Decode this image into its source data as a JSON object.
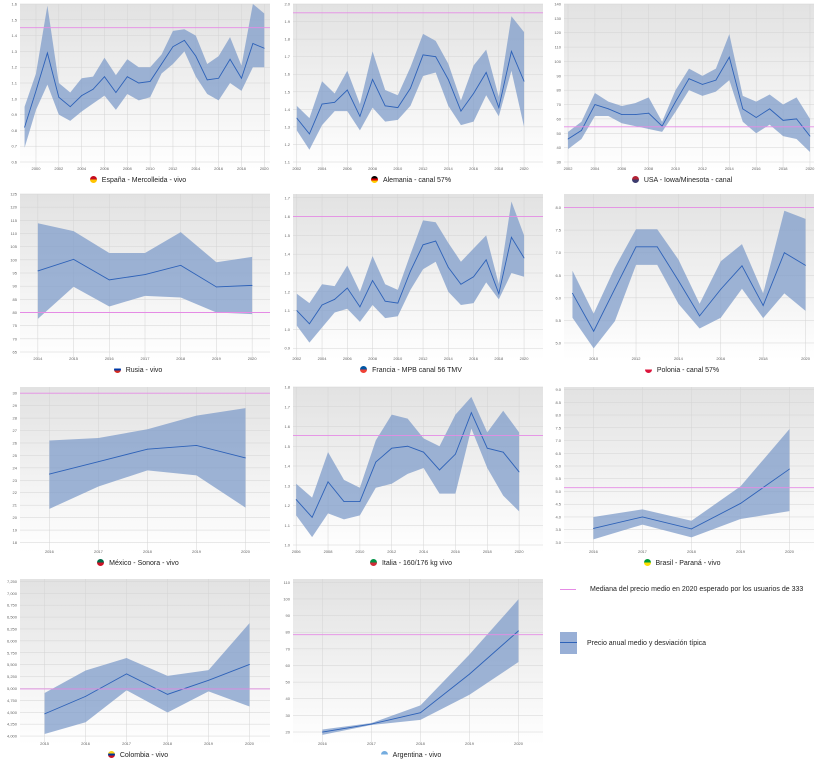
{
  "colors": {
    "band": "#7f9cc9",
    "mean_line": "#2e62b8",
    "median_line": "#e58be5",
    "plot_bg_top": "#e2e2e2",
    "plot_bg_bottom": "#ffffff"
  },
  "legend": {
    "median_label": "Mediana del precio medio en 2020 esperado por los usuarios de 333",
    "band_label": "Precio anual medio y desviación típica"
  },
  "chart_data": [
    {
      "type": "area",
      "title": "España - Mercolleida - vivo",
      "flag": "spain-flag-icon",
      "flag_colors": [
        "#c60b1e",
        "#ffc400"
      ],
      "x": [
        1999,
        2000,
        2001,
        2002,
        2003,
        2004,
        2005,
        2006,
        2007,
        2008,
        2009,
        2010,
        2011,
        2012,
        2013,
        2014,
        2015,
        2016,
        2017,
        2018,
        2019,
        2020
      ],
      "mean": [
        0.82,
        1.05,
        1.29,
        1.01,
        0.95,
        1.02,
        1.06,
        1.14,
        1.04,
        1.14,
        1.1,
        1.11,
        1.22,
        1.33,
        1.37,
        1.27,
        1.12,
        1.13,
        1.25,
        1.13,
        1.35,
        1.32
      ],
      "upper": [
        0.95,
        1.16,
        1.59,
        1.1,
        1.04,
        1.13,
        1.14,
        1.26,
        1.15,
        1.25,
        1.2,
        1.2,
        1.28,
        1.43,
        1.44,
        1.4,
        1.22,
        1.27,
        1.39,
        1.21,
        1.6,
        1.54
      ],
      "lower": [
        0.69,
        0.93,
        1.09,
        0.9,
        0.86,
        0.92,
        0.97,
        1.02,
        0.93,
        1.03,
        0.99,
        1.01,
        1.16,
        1.22,
        1.3,
        1.14,
        1.03,
        0.99,
        1.1,
        1.05,
        1.2,
        1.2
      ],
      "median_2020": 1.45,
      "ylim": [
        0.6,
        1.6
      ],
      "yticks": [
        "0.6",
        "0.7",
        "0.8",
        "0.9",
        "1.0",
        "1.1",
        "1.2",
        "1.3",
        "1.4",
        "1.5",
        "1.6"
      ],
      "xlim": [
        1998.6,
        2020.5
      ],
      "xticks": [
        "2000",
        "2002",
        "2004",
        "2006",
        "2008",
        "2010",
        "2012",
        "2014",
        "2016",
        "2018",
        "2020"
      ],
      "grid": true
    },
    {
      "type": "area",
      "title": "Alemania - canal 57%",
      "flag": "germany-flag-icon",
      "flag_colors": [
        "#000000",
        "#dd0000",
        "#ffce00"
      ],
      "x": [
        2002,
        2003,
        2004,
        2005,
        2006,
        2007,
        2008,
        2009,
        2010,
        2011,
        2012,
        2013,
        2014,
        2015,
        2016,
        2017,
        2018,
        2019,
        2020
      ],
      "mean": [
        1.35,
        1.26,
        1.43,
        1.44,
        1.51,
        1.36,
        1.57,
        1.42,
        1.41,
        1.52,
        1.71,
        1.7,
        1.57,
        1.39,
        1.49,
        1.61,
        1.41,
        1.73,
        1.56
      ],
      "upper": [
        1.42,
        1.35,
        1.56,
        1.49,
        1.62,
        1.43,
        1.73,
        1.51,
        1.48,
        1.64,
        1.83,
        1.79,
        1.66,
        1.45,
        1.65,
        1.74,
        1.47,
        1.93,
        1.84
      ],
      "lower": [
        1.28,
        1.17,
        1.31,
        1.39,
        1.39,
        1.28,
        1.41,
        1.33,
        1.34,
        1.42,
        1.59,
        1.61,
        1.42,
        1.31,
        1.33,
        1.48,
        1.36,
        1.62,
        1.3
      ],
      "median_2020": 1.95,
      "ylim": [
        1.1,
        2.0
      ],
      "yticks": [
        "1.1",
        "1.2",
        "1.3",
        "1.4",
        "1.5",
        "1.6",
        "1.7",
        "1.8",
        "1.9",
        "2.0"
      ],
      "xlim": [
        2001.7,
        2021.5
      ],
      "xticks": [
        "2002",
        "2004",
        "2006",
        "2008",
        "2010",
        "2012",
        "2014",
        "2016",
        "2018",
        "2020"
      ],
      "grid": true
    },
    {
      "type": "area",
      "title": "USA - Iowa/Minesota - canal",
      "flag": "usa-flag-icon",
      "flag_colors": [
        "#b22234",
        "#3c3b6e"
      ],
      "x": [
        2002,
        2003,
        2004,
        2005,
        2006,
        2007,
        2008,
        2009,
        2010,
        2011,
        2012,
        2013,
        2014,
        2015,
        2016,
        2017,
        2018,
        2019,
        2020
      ],
      "mean": [
        46,
        52,
        70,
        67,
        63,
        63,
        64,
        55,
        72,
        88,
        84,
        87,
        103,
        67,
        61,
        67,
        59,
        60,
        48
      ],
      "upper": [
        51,
        58,
        78,
        72,
        69,
        71,
        75,
        58,
        80,
        95,
        90,
        95,
        119,
        76,
        72,
        77,
        70,
        75,
        60
      ],
      "lower": [
        39,
        46,
        62,
        62,
        57,
        55,
        53,
        51,
        65,
        80,
        76,
        79,
        87,
        58,
        50,
        56,
        48,
        46,
        37
      ],
      "median_2020": 54.5,
      "ylim": [
        30,
        140
      ],
      "yticks": [
        "30",
        "40",
        "50",
        "60",
        "70",
        "80",
        "90",
        "100",
        "110",
        "120",
        "130",
        "140"
      ],
      "xlim": [
        2001.7,
        2020.3
      ],
      "xticks": [
        "2002",
        "2004",
        "2006",
        "2008",
        "2010",
        "2012",
        "2014",
        "2016",
        "2018",
        "2020"
      ],
      "grid": true
    },
    {
      "type": "area",
      "title": "Rusia - vivo",
      "flag": "russia-flag-icon",
      "flag_colors": [
        "#ffffff",
        "#0039a6",
        "#d52b1e"
      ],
      "x": [
        2014,
        2015,
        2016,
        2017,
        2018,
        2019,
        2020
      ],
      "mean": [
        95.8,
        100.2,
        92.4,
        94.4,
        97.9,
        89.7,
        90.3
      ],
      "upper": [
        113.9,
        110.9,
        102.6,
        102.6,
        110.5,
        99.1,
        101.1
      ],
      "lower": [
        77.6,
        89.8,
        82.3,
        86.3,
        85.7,
        80.0,
        79.4
      ],
      "median_2020": 80,
      "ylim": [
        65,
        125
      ],
      "yticks": [
        "65",
        "70",
        "75",
        "80",
        "85",
        "90",
        "95",
        "100",
        "105",
        "110",
        "115",
        "120",
        "125"
      ],
      "xlim": [
        2013.5,
        2020.5
      ],
      "xticks": [
        "2014",
        "2015",
        "2016",
        "2017",
        "2018",
        "2019",
        "2020"
      ],
      "grid": true
    },
    {
      "type": "area",
      "title": "Francia - MPB canal 56 TMV",
      "flag": "france-flag-icon",
      "flag_colors": [
        "#0055a4",
        "#ef4135"
      ],
      "x": [
        2002,
        2003,
        2004,
        2005,
        2006,
        2007,
        2008,
        2009,
        2010,
        2011,
        2012,
        2013,
        2014,
        2015,
        2016,
        2017,
        2018,
        2019,
        2020
      ],
      "mean": [
        1.1,
        1.03,
        1.13,
        1.16,
        1.22,
        1.12,
        1.26,
        1.15,
        1.14,
        1.31,
        1.45,
        1.47,
        1.33,
        1.24,
        1.28,
        1.37,
        1.19,
        1.49,
        1.38
      ],
      "upper": [
        1.19,
        1.14,
        1.24,
        1.23,
        1.34,
        1.2,
        1.39,
        1.24,
        1.21,
        1.4,
        1.58,
        1.57,
        1.46,
        1.36,
        1.43,
        1.5,
        1.24,
        1.68,
        1.5
      ],
      "lower": [
        1.02,
        0.93,
        1.01,
        1.09,
        1.11,
        1.04,
        1.13,
        1.06,
        1.07,
        1.21,
        1.32,
        1.36,
        1.2,
        1.13,
        1.14,
        1.25,
        1.16,
        1.3,
        1.28
      ],
      "median_2020": 1.6,
      "ylim": [
        0.88,
        1.72
      ],
      "yticks": [
        "0.9",
        "1.0",
        "1.1",
        "1.2",
        "1.3",
        "1.4",
        "1.5",
        "1.6",
        "1.7"
      ],
      "xlim": [
        2001.7,
        2021.5
      ],
      "xticks": [
        "2002",
        "2004",
        "2006",
        "2008",
        "2010",
        "2012",
        "2014",
        "2016",
        "2018",
        "2020"
      ],
      "grid": true
    },
    {
      "type": "area",
      "title": "Polonia - canal 57%",
      "flag": "poland-flag-icon",
      "flag_colors": [
        "#ffffff",
        "#dc143c"
      ],
      "x": [
        2009,
        2010,
        2011,
        2012,
        2013,
        2014,
        2015,
        2016,
        2017,
        2018,
        2019,
        2020
      ],
      "mean": [
        6.1,
        5.26,
        6.2,
        7.13,
        7.13,
        6.38,
        5.6,
        6.19,
        6.71,
        5.83,
        7.0,
        6.72
      ],
      "upper": [
        6.6,
        5.65,
        6.67,
        7.52,
        7.52,
        6.85,
        5.87,
        6.81,
        7.19,
        6.1,
        7.93,
        7.75
      ],
      "lower": [
        5.56,
        4.88,
        5.48,
        6.73,
        6.73,
        5.87,
        5.32,
        5.56,
        6.2,
        5.55,
        6.1,
        5.71
      ],
      "median_2020": 8.0,
      "ylim": [
        4.8,
        8.3
      ],
      "yticks": [
        "5.0",
        "5.5",
        "6.0",
        "6.5",
        "7.0",
        "7.5",
        "8.0"
      ],
      "xlim": [
        2008.6,
        2020.4
      ],
      "xticks": [
        "2010",
        "2012",
        "2014",
        "2016",
        "2018",
        "2020"
      ],
      "grid": true
    },
    {
      "type": "area",
      "title": "México - Sonora - vivo",
      "flag": "mexico-flag-icon",
      "flag_colors": [
        "#006847",
        "#ce1126"
      ],
      "x": [
        2016,
        2017,
        2018,
        2019,
        2020
      ],
      "mean": [
        23.5,
        24.5,
        25.5,
        25.8,
        24.8
      ],
      "upper": [
        26.2,
        26.4,
        27.1,
        28.2,
        28.8
      ],
      "lower": [
        20.7,
        22.5,
        23.8,
        23.4,
        20.8
      ],
      "median_2020": 30,
      "ylim": [
        17.8,
        30.5
      ],
      "yticks": [
        "18",
        "19",
        "20",
        "21",
        "22",
        "23",
        "24",
        "25",
        "26",
        "27",
        "28",
        "29",
        "30"
      ],
      "xlim": [
        2015.4,
        2020.5
      ],
      "xticks": [
        "2016",
        "2017",
        "2018",
        "2019",
        "2020"
      ],
      "grid": true
    },
    {
      "type": "area",
      "title": "Italia - 160/176 kg vivo",
      "flag": "italy-flag-icon",
      "flag_colors": [
        "#009246",
        "#ce2b37"
      ],
      "x": [
        2006,
        2007,
        2008,
        2009,
        2010,
        2011,
        2012,
        2013,
        2014,
        2015,
        2016,
        2017,
        2018,
        2019,
        2020
      ],
      "mean": [
        1.23,
        1.14,
        1.32,
        1.22,
        1.22,
        1.42,
        1.49,
        1.5,
        1.47,
        1.38,
        1.46,
        1.67,
        1.49,
        1.47,
        1.37
      ],
      "upper": [
        1.31,
        1.24,
        1.47,
        1.33,
        1.29,
        1.53,
        1.66,
        1.64,
        1.54,
        1.5,
        1.66,
        1.75,
        1.57,
        1.68,
        1.57
      ],
      "lower": [
        1.15,
        1.04,
        1.16,
        1.13,
        1.15,
        1.29,
        1.31,
        1.36,
        1.39,
        1.26,
        1.26,
        1.59,
        1.39,
        1.25,
        1.17
      ],
      "median_2020": 1.555,
      "ylim": [
        1.0,
        1.8
      ],
      "yticks": [
        "1.0",
        "1.1",
        "1.2",
        "1.3",
        "1.4",
        "1.5",
        "1.6",
        "1.7",
        "1.8"
      ],
      "xlim": [
        2005.8,
        2021.5
      ],
      "xticks": [
        "2006",
        "2008",
        "2010",
        "2012",
        "2014",
        "2016",
        "2018",
        "2020"
      ],
      "grid": true
    },
    {
      "type": "area",
      "title": "Brasil - Paraná - vivo",
      "flag": "brazil-flag-icon",
      "flag_colors": [
        "#009c3b",
        "#ffdf00"
      ],
      "x": [
        2016,
        2017,
        2018,
        2019,
        2020
      ],
      "mean": [
        3.55,
        4.0,
        3.53,
        4.53,
        5.88
      ],
      "upper": [
        4.0,
        4.3,
        3.85,
        5.2,
        7.45
      ],
      "lower": [
        3.12,
        3.7,
        3.2,
        3.92,
        4.23
      ],
      "median_2020": 5.15,
      "ylim": [
        2.9,
        9.1
      ],
      "yticks": [
        "3.0",
        "3.5",
        "4.0",
        "4.5",
        "5.0",
        "5.5",
        "6.0",
        "6.5",
        "7.0",
        "7.5",
        "8.0",
        "8.5",
        "9.0"
      ],
      "xlim": [
        2015.4,
        2020.5
      ],
      "xticks": [
        "2016",
        "2017",
        "2018",
        "2019",
        "2020"
      ],
      "grid": true
    },
    {
      "type": "area",
      "title": "Colombia - vivo",
      "flag": "colombia-flag-icon",
      "flag_colors": [
        "#fcd116",
        "#003893",
        "#ce1126"
      ],
      "x": [
        2015,
        2016,
        2017,
        2018,
        2019,
        2020
      ],
      "mean": [
        4466,
        4833,
        5306,
        4876,
        5172,
        5504
      ],
      "upper": [
        4904,
        5377,
        5639,
        5264,
        5384,
        6373
      ],
      "lower": [
        4042,
        4290,
        4961,
        4494,
        4940,
        4622
      ],
      "median_2020": 4990,
      "ylim": [
        3980,
        7300
      ],
      "yticks": [
        "4,000",
        "4,250",
        "4,500",
        "4,750",
        "5,000",
        "5,250",
        "5,500",
        "5,750",
        "6,000",
        "6,250",
        "6,500",
        "6,750",
        "7,000",
        "7,250"
      ],
      "xlim": [
        2014.4,
        2020.5
      ],
      "xticks": [
        "2015",
        "2016",
        "2017",
        "2018",
        "2019",
        "2020"
      ],
      "grid": true
    },
    {
      "type": "area",
      "title": "Argentina - vivo",
      "flag": "argentina-flag-icon",
      "flag_colors": [
        "#74acdf",
        "#ffffff"
      ],
      "x": [
        2016,
        2017,
        2018,
        2019,
        2020
      ],
      "mean": [
        20,
        24.8,
        31.6,
        54.8,
        80.8
      ],
      "upper": [
        21.5,
        25.4,
        36,
        66.6,
        99.8
      ],
      "lower": [
        18.3,
        24.2,
        27.3,
        42.4,
        62.1
      ],
      "median_2020": 78.5,
      "ylim": [
        17,
        112
      ],
      "yticks": [
        "20",
        "30",
        "40",
        "50",
        "60",
        "70",
        "80",
        "90",
        "100",
        "110"
      ],
      "xlim": [
        2015.4,
        2020.5
      ],
      "xticks": [
        "2016",
        "2017",
        "2018",
        "2019",
        "2020"
      ],
      "grid": true
    }
  ]
}
